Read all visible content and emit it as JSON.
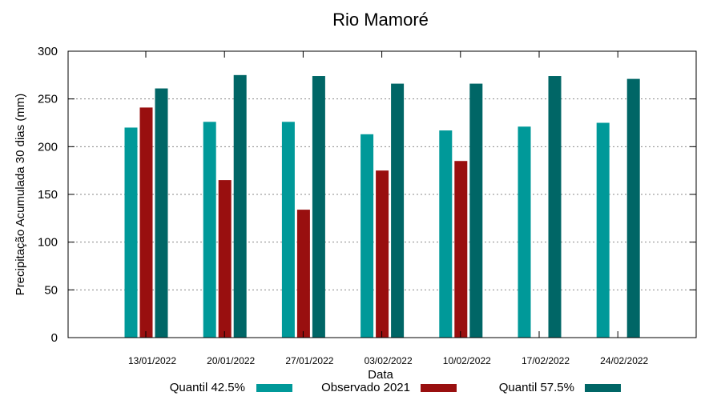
{
  "chart_data": {
    "type": "bar",
    "title": "Rio Mamoré",
    "xlabel": "Data",
    "ylabel": "Precipitação Acumulada 30 dias (mm)",
    "ylim": [
      0,
      300
    ],
    "yticks": [
      0,
      50,
      100,
      150,
      200,
      250,
      300
    ],
    "grid": true,
    "legend_position": "bottom",
    "categories": [
      "13/01/2022",
      "20/01/2022",
      "27/01/2022",
      "03/02/2022",
      "10/02/2022",
      "17/02/2022",
      "24/02/2022"
    ],
    "series": [
      {
        "name": "Quantil 42.5%",
        "color": "#009999",
        "values": [
          220,
          226,
          226,
          213,
          217,
          221,
          225
        ]
      },
      {
        "name": "Observado 2021",
        "color": "#990f0f",
        "values": [
          241,
          165,
          134,
          175,
          185,
          null,
          null
        ]
      },
      {
        "name": "Quantil 57.5%",
        "color": "#006666",
        "values": [
          261,
          275,
          274,
          266,
          266,
          274,
          271
        ]
      }
    ]
  }
}
